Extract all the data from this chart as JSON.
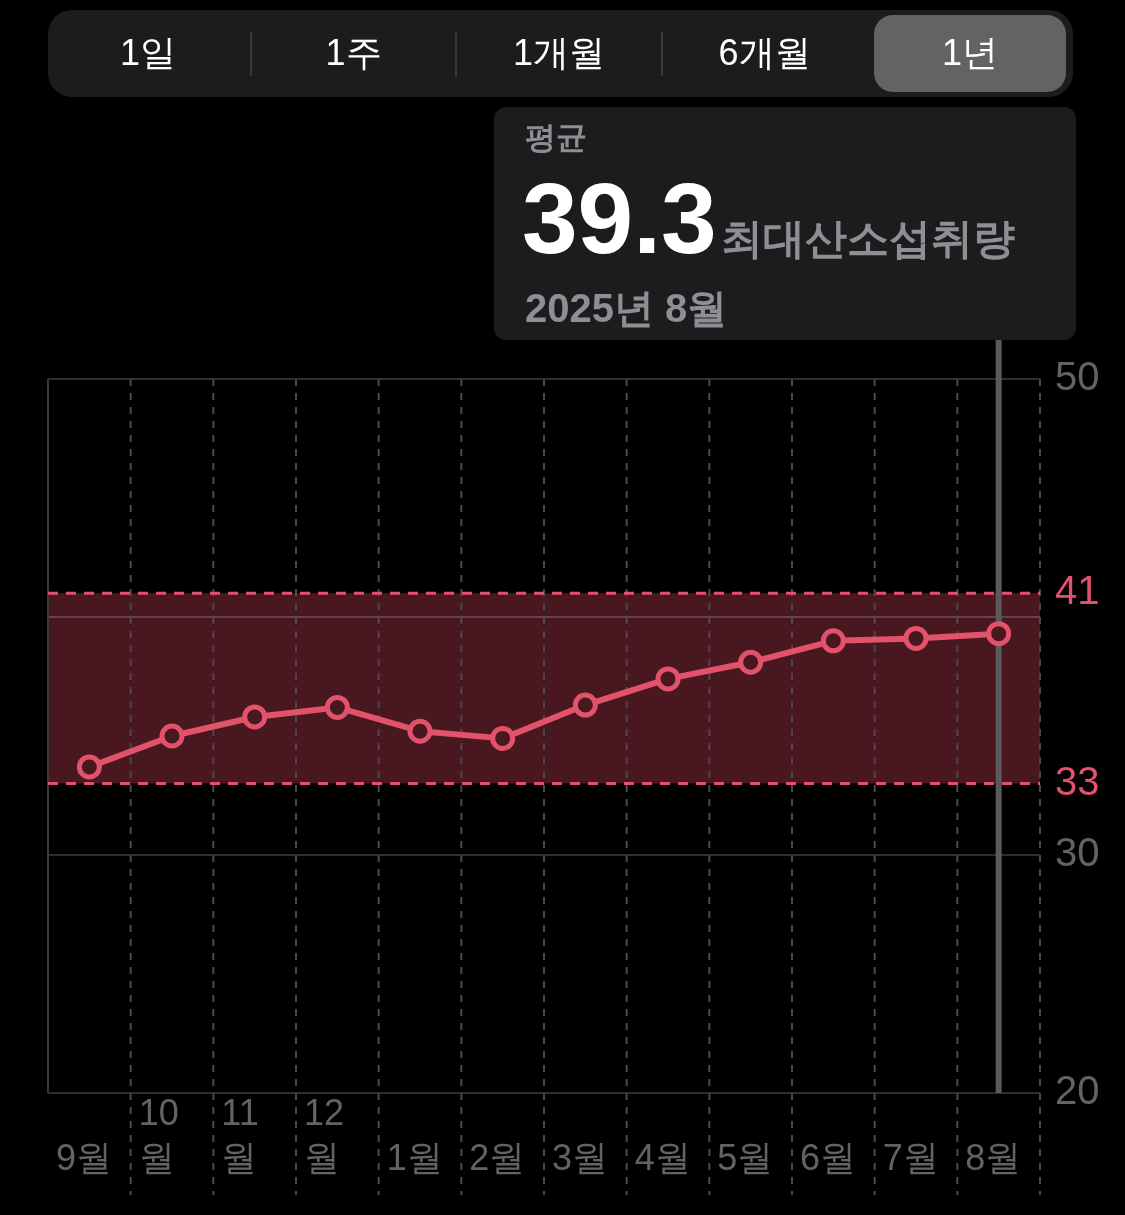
{
  "chart_data": {
    "type": "line",
    "categories": [
      "9월",
      "10월",
      "11월",
      "12월",
      "1월",
      "2월",
      "3월",
      "4월",
      "5월",
      "6월",
      "7월",
      "8월"
    ],
    "series": [
      {
        "color": "#e2526b",
        "values": [
          33.7,
          35.0,
          35.8,
          36.2,
          35.2,
          34.9,
          36.3,
          37.4,
          38.1,
          39.0,
          39.1,
          39.3
        ]
      }
    ],
    "ylim": [
      20,
      50
    ],
    "yticks": [
      20,
      30,
      {
        "value": 40,
        "label": null
      },
      50
    ],
    "grid": true,
    "legend": false,
    "marker": "circle",
    "line_style": "solid",
    "bands": [
      {
        "axis": "y",
        "from": 33,
        "to": 41,
        "color": "#481720"
      }
    ],
    "ref_lines": [
      {
        "axis": "y",
        "value": 41,
        "label": "41",
        "color": "#e2526b",
        "line_style": "dashed"
      },
      {
        "axis": "y",
        "value": 33,
        "label": "33",
        "color": "#e2526b",
        "line_style": "dashed"
      },
      {
        "axis": "x",
        "value": "8월",
        "color": "#5a5a5e",
        "line_style": "solid"
      }
    ],
    "annotations": [
      "1일",
      "1주",
      "1개월",
      "6개월",
      "1년",
      "평균",
      "39.3",
      "최대산소섭취량",
      "2025년 8월"
    ]
  }
}
